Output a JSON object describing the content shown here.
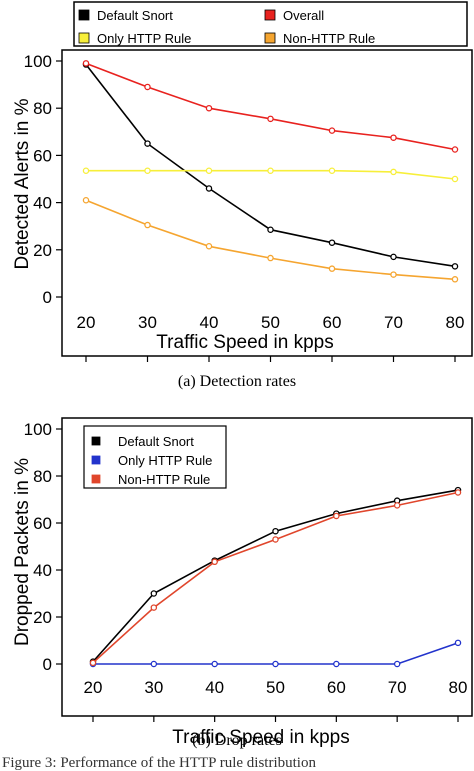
{
  "chart_data": [
    {
      "type": "line",
      "xlabel": "Traffic Speed in kpps",
      "ylabel": "Detected Alerts in %",
      "x": [
        20,
        30,
        40,
        50,
        60,
        70,
        80
      ],
      "xlim": [
        20,
        80
      ],
      "ylim": [
        0,
        100
      ],
      "yticks": [
        0,
        20,
        40,
        60,
        80,
        100
      ],
      "legend_position": "top-outside",
      "caption": "(a) Detection rates",
      "series": [
        {
          "name": "Default Snort",
          "color": "#000000",
          "values": [
            98.5,
            65,
            46,
            28.5,
            23,
            17,
            13
          ]
        },
        {
          "name": "Overall",
          "color": "#e8221f",
          "values": [
            99,
            89,
            80,
            75.5,
            70.5,
            67.5,
            62.5
          ]
        },
        {
          "name": "Only HTTP Rule",
          "color": "#f7ef3a",
          "values": [
            53.5,
            53.5,
            53.5,
            53.5,
            53.5,
            53,
            50
          ]
        },
        {
          "name": "Non-HTTP Rule",
          "color": "#f5a530",
          "values": [
            41,
            30.5,
            21.5,
            16.5,
            12,
            9.5,
            7.5
          ]
        }
      ]
    },
    {
      "type": "line",
      "xlabel": "Traffic Speed in kpps",
      "ylabel": "Dropped Packets in %",
      "x": [
        20,
        30,
        40,
        50,
        60,
        70,
        80
      ],
      "xlim": [
        20,
        80
      ],
      "ylim": [
        0,
        100
      ],
      "yticks": [
        0,
        20,
        40,
        60,
        80,
        100
      ],
      "legend_position": "top-left",
      "caption": "(b) Drop rates",
      "series": [
        {
          "name": "Default Snort",
          "color": "#000000",
          "values": [
            1,
            30,
            44,
            56.5,
            64,
            69.5,
            74
          ]
        },
        {
          "name": "Only HTTP Rule",
          "color": "#2233cc",
          "values": [
            0,
            0,
            0,
            0,
            0,
            0,
            9
          ]
        },
        {
          "name": "Non-HTTP Rule",
          "color": "#e0462c",
          "values": [
            0.5,
            24,
            43.5,
            53,
            63,
            67.5,
            73
          ]
        }
      ]
    }
  ],
  "footer": "Figure 3: Performance of the HTTP rule distribution"
}
